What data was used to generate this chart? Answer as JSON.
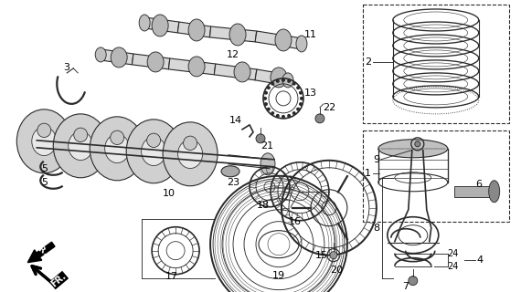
{
  "bg_color": "#ffffff",
  "line_color": "#2a2a2a",
  "figsize": [
    5.7,
    3.2
  ],
  "dpi": 100,
  "xlim": [
    0,
    570
  ],
  "ylim": [
    0,
    320
  ]
}
